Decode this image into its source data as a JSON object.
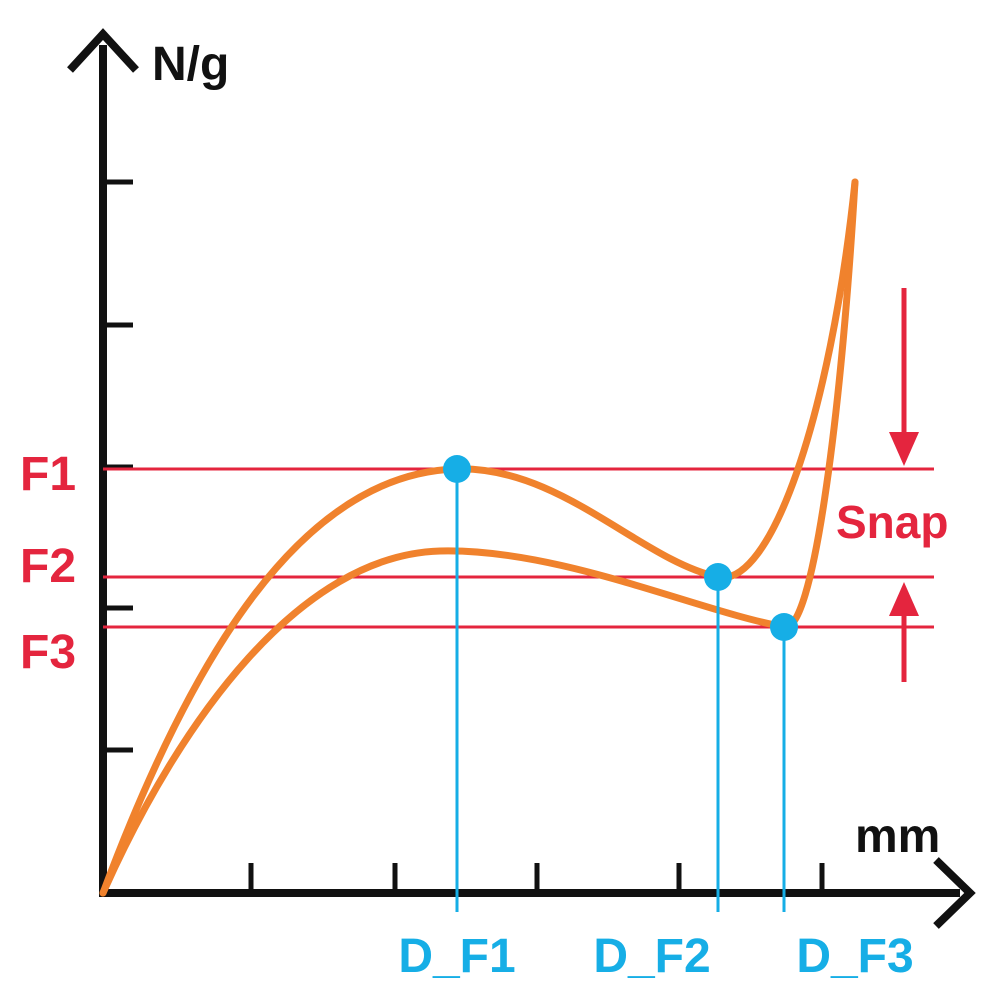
{
  "diagram": {
    "axes": {
      "y_label": "N/g",
      "x_label": "mm",
      "y_tick_count": 6,
      "x_tick_count": 5
    },
    "force_levels": [
      {
        "id": "f1",
        "label": "F1"
      },
      {
        "id": "f2",
        "label": "F2"
      },
      {
        "id": "f3",
        "label": "F3"
      }
    ],
    "distance_markers": [
      {
        "id": "d-f1",
        "label": "D_F1"
      },
      {
        "id": "d-f2",
        "label": "D_F2"
      },
      {
        "id": "d-f3",
        "label": "D_F3"
      }
    ],
    "snap_label": "Snap",
    "colors": {
      "curve": "#F0822D",
      "force_line": "#E4253E",
      "marker": "#16AEE6",
      "axis": "#111111",
      "snap_arrow": "#E4253E"
    }
  }
}
